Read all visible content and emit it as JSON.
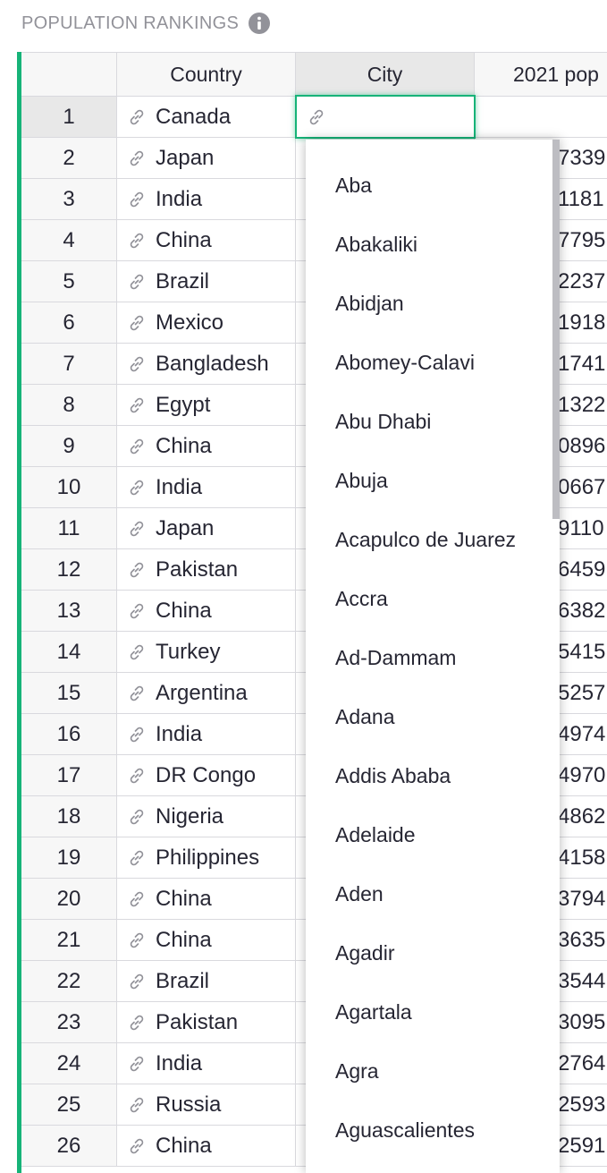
{
  "title": {
    "text": "POPULATION RANKINGS",
    "info_icon": "info-icon"
  },
  "colors": {
    "accent": "#16b378",
    "header_bg": "#f7f7f7",
    "selected_header_bg": "#e8e8e8",
    "grid_line": "#d9d9de"
  },
  "columns": {
    "rownum": "",
    "country": "Country",
    "city": "City",
    "pop": "2021 pop"
  },
  "rows": [
    {
      "num": "1",
      "country": "Canada",
      "pop": ""
    },
    {
      "num": "2",
      "country": "Japan",
      "pop": "7339"
    },
    {
      "num": "3",
      "country": "India",
      "pop": "1181"
    },
    {
      "num": "4",
      "country": "China",
      "pop": "7795"
    },
    {
      "num": "5",
      "country": "Brazil",
      "pop": "2237"
    },
    {
      "num": "6",
      "country": "Mexico",
      "pop": "1918"
    },
    {
      "num": "7",
      "country": "Bangladesh",
      "pop": "1741"
    },
    {
      "num": "8",
      "country": "Egypt",
      "pop": "1322"
    },
    {
      "num": "9",
      "country": "China",
      "pop": "0896"
    },
    {
      "num": "10",
      "country": "India",
      "pop": "0667"
    },
    {
      "num": "11",
      "country": "Japan",
      "pop": "9110"
    },
    {
      "num": "12",
      "country": "Pakistan",
      "pop": "6459"
    },
    {
      "num": "13",
      "country": "China",
      "pop": "6382"
    },
    {
      "num": "14",
      "country": "Turkey",
      "pop": "5415"
    },
    {
      "num": "15",
      "country": "Argentina",
      "pop": "5257"
    },
    {
      "num": "16",
      "country": "India",
      "pop": "4974"
    },
    {
      "num": "17",
      "country": "DR Congo",
      "pop": "4970"
    },
    {
      "num": "18",
      "country": "Nigeria",
      "pop": "4862"
    },
    {
      "num": "19",
      "country": "Philippines",
      "pop": "4158"
    },
    {
      "num": "20",
      "country": "China",
      "pop": "3794"
    },
    {
      "num": "21",
      "country": "China",
      "pop": "3635"
    },
    {
      "num": "22",
      "country": "Brazil",
      "pop": "3544"
    },
    {
      "num": "23",
      "country": "Pakistan",
      "pop": "3095"
    },
    {
      "num": "24",
      "country": "India",
      "pop": "2764"
    },
    {
      "num": "25",
      "country": "Russia",
      "pop": "2593"
    },
    {
      "num": "26",
      "country": "China",
      "pop": "2591"
    }
  ],
  "active_cell": {
    "value": "",
    "icon": "link-icon"
  },
  "dropdown": {
    "options": [
      "Aba",
      "Abakaliki",
      "Abidjan",
      "Abomey-Calavi",
      "Abu Dhabi",
      "Abuja",
      "Acapulco de Juarez",
      "Accra",
      "Ad-Dammam",
      "Adana",
      "Addis Ababa",
      "Adelaide",
      "Aden",
      "Agadir",
      "Agartala",
      "Agra",
      "Aguascalientes"
    ]
  }
}
